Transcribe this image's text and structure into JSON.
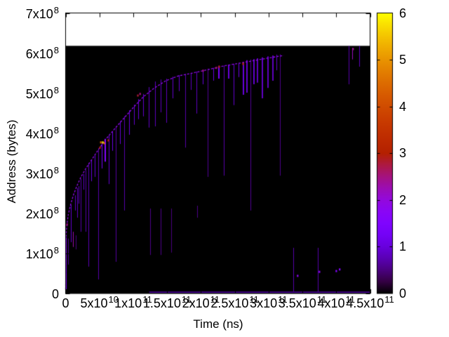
{
  "colors": {
    "background": "#ffffff",
    "plot_fill": "#000000",
    "border": "#000000",
    "text": "#000000",
    "palette_stops": {
      "0": "#000000",
      "1": "#6801dd",
      "2": "#9309dd",
      "3": "#b42000",
      "4": "#d04c00",
      "5": "#e99400",
      "6": "#ffff00"
    }
  },
  "chart_data": {
    "type": "heatmap",
    "title": "",
    "xlabel": "Time (ns)",
    "ylabel": "Address (bytes)",
    "x_range": [
      0,
      450000000000.0
    ],
    "y_range": [
      0,
      700000000.0
    ],
    "grid": false,
    "x_ticks": [
      {
        "v": 0,
        "m": "0",
        "e": ""
      },
      {
        "v": 50000000000.0,
        "m": "5x10",
        "e": "10"
      },
      {
        "v": 100000000000.0,
        "m": "1x10",
        "e": "11"
      },
      {
        "v": 150000000000.0,
        "m": "1.5x10",
        "e": "11"
      },
      {
        "v": 200000000000.0,
        "m": "2x10",
        "e": "11"
      },
      {
        "v": 250000000000.0,
        "m": "2.5x10",
        "e": "11"
      },
      {
        "v": 300000000000.0,
        "m": "3x10",
        "e": "11"
      },
      {
        "v": 350000000000.0,
        "m": "3.5x10",
        "e": "11"
      },
      {
        "v": 400000000000.0,
        "m": "4x10",
        "e": "11"
      },
      {
        "v": 450000000000.0,
        "m": "4.5x10",
        "e": "11"
      }
    ],
    "y_ticks": [
      {
        "v": 0,
        "m": "0",
        "e": ""
      },
      {
        "v": 100000000.0,
        "m": "1x10",
        "e": "8"
      },
      {
        "v": 200000000.0,
        "m": "2x10",
        "e": "8"
      },
      {
        "v": 300000000.0,
        "m": "3x10",
        "e": "8"
      },
      {
        "v": 400000000.0,
        "m": "4x10",
        "e": "8"
      },
      {
        "v": 500000000.0,
        "m": "5x10",
        "e": "8"
      },
      {
        "v": 600000000.0,
        "m": "6x10",
        "e": "8"
      },
      {
        "v": 700000000.0,
        "m": "7x10",
        "e": "8"
      }
    ],
    "colorbar": {
      "range": [
        0,
        6
      ],
      "ticks": [
        {
          "v": 0,
          "label": "0"
        },
        {
          "v": 1,
          "label": "1"
        },
        {
          "v": 2,
          "label": "2"
        },
        {
          "v": 3,
          "label": "3"
        },
        {
          "v": 4,
          "label": "4"
        },
        {
          "v": 5,
          "label": "5"
        },
        {
          "v": 6,
          "label": "6"
        }
      ],
      "palette": "gnuplot pm3d rgbformulae 7,5,15 (black-violet-purple-red-orange-yellow)",
      "position": "right"
    },
    "data_extent": {
      "t_max": 450000000000.0,
      "address_max": 618000000.0
    },
    "frontier_note": "saturating allocation frontier; bright violet broken line, value ~1.9",
    "frontier_intensity": 1.9,
    "frontier": [
      [
        0,
        10000000.0
      ],
      [
        1000000000.0,
        154000000.0
      ],
      [
        2100000000.0,
        175000000.0
      ],
      [
        4100000000.0,
        198000000.0
      ],
      [
        7300000000.0,
        221000000.0
      ],
      [
        11400000000.0,
        245000000.0
      ],
      [
        16600000000.0,
        268000000.0
      ],
      [
        22800000000.0,
        291000000.0
      ],
      [
        30000000000.0,
        312000000.0
      ],
      [
        38300000000.0,
        333000000.0
      ],
      [
        47700000000.0,
        357000000.0
      ],
      [
        58000000000.0,
        382000000.0
      ],
      [
        70500000000.0,
        407000000.0
      ],
      [
        83900000000.0,
        433000000.0
      ],
      [
        99500000000.0,
        463000000.0
      ],
      [
        115000000000.0,
        491000000.0
      ],
      [
        130500000000.0,
        512000000.0
      ],
      [
        148200000000.0,
        531000000.0
      ],
      [
        166800000000.0,
        543000000.0
      ],
      [
        187500000000.0,
        550000000.0
      ],
      [
        211400000000.0,
        559000000.0
      ],
      [
        234200000000.0,
        568000000.0
      ],
      [
        258000000000.0,
        575000000.0
      ],
      [
        280800000000.0,
        582000000.0
      ],
      [
        304600000000.0,
        589000000.0
      ],
      [
        322200000000.0,
        594000000.0
      ]
    ],
    "streaks_format": "[t_ns, addr_from_bytes, addr_to_bytes, intensity_0_to_6, width_px]",
    "streaks": [
      [
        300000000.0,
        3000000.0,
        140000000.0,
        1.2,
        1
      ],
      [
        500000000.0,
        0,
        50000000.0,
        1.5,
        1
      ],
      [
        4000000000.0,
        72000000.0,
        137000000.0,
        0.6,
        1
      ],
      [
        7300000000.0,
        128000000.0,
        221000000.0,
        0.9,
        1
      ],
      [
        10400000000.0,
        116000000.0,
        154000000.0,
        2.3,
        1
      ],
      [
        13500000000.0,
        207000000.0,
        245000000.0,
        0.8,
        1
      ],
      [
        15500000000.0,
        110000000.0,
        145000000.0,
        0.5,
        1
      ],
      [
        16600000000.0,
        189000000.0,
        263000000.0,
        0.8,
        1
      ],
      [
        19700000000.0,
        224000000.0,
        268000000.0,
        0.8,
        1
      ],
      [
        22800000000.0,
        154000000.0,
        286000000.0,
        0.7,
        1
      ],
      [
        26900000000.0,
        259000000.0,
        298000000.0,
        0.9,
        1
      ],
      [
        30000000000.0,
        154000000.0,
        308000000.0,
        0.7,
        1
      ],
      [
        34200000000.0,
        67000000.0,
        326000000.0,
        0.75,
        1
      ],
      [
        38300000000.0,
        280000000.0,
        333000000.0,
        1.0,
        1
      ],
      [
        43500000000.0,
        291000000.0,
        347000000.0,
        0.9,
        1
      ],
      [
        48700000000.0,
        35000000.0,
        361000000.0,
        0.7,
        1
      ],
      [
        53900000000.0,
        312000000.0,
        375000000.0,
        1.3,
        1
      ],
      [
        59100000000.0,
        329000000.0,
        386000000.0,
        1.6,
        2
      ],
      [
        64200000000.0,
        273000000.0,
        396000000.0,
        0.9,
        1
      ],
      [
        69400000000.0,
        356000000.0,
        405000000.0,
        1.1,
        1
      ],
      [
        74600000000.0,
        79000000.0,
        415000000.0,
        0.65,
        1
      ],
      [
        80800000000.0,
        373000000.0,
        429000000.0,
        1.0,
        1
      ],
      [
        87000000000.0,
        207000000.0,
        442000000.0,
        0.7,
        1
      ],
      [
        94300000000.0,
        396000000.0,
        457000000.0,
        1.0,
        1
      ],
      [
        101500000000.0,
        421000000.0,
        471000000.0,
        0.9,
        1
      ],
      [
        107800000000.0,
        435000000.0,
        485000000.0,
        1.0,
        1
      ],
      [
        115000000000.0,
        442000000.0,
        498000000.0,
        0.9,
        1
      ],
      [
        123300000000.0,
        414000000.0,
        515000000.0,
        0.85,
        1
      ],
      [
        125400000000.0,
        96000000.0,
        212000000.0,
        0.55,
        1
      ],
      [
        132600000000.0,
        417000000.0,
        529000000.0,
        0.8,
        1
      ],
      [
        140900000000.0,
        96000000.0,
        212000000.0,
        0.55,
        1
      ],
      [
        140900000000.0,
        452000000.0,
        534000000.0,
        0.8,
        1
      ],
      [
        149200000000.0,
        426000000.0,
        536000000.0,
        0.8,
        1
      ],
      [
        156400000000.0,
        102000000.0,
        212000000.0,
        0.5,
        1
      ],
      [
        158500000000.0,
        487000000.0,
        541000000.0,
        0.9,
        1
      ],
      [
        167800000000.0,
        505000000.0,
        545000000.0,
        0.9,
        1
      ],
      [
        177200000000.0,
        364000000.0,
        548000000.0,
        0.7,
        1
      ],
      [
        185500000000.0,
        508000000.0,
        550000000.0,
        0.8,
        1
      ],
      [
        194800000000.0,
        189000000.0,
        219000000.0,
        0.55,
        1
      ],
      [
        193700000000.0,
        449000000.0,
        554000000.0,
        0.8,
        1
      ],
      [
        203100000000.0,
        522000000.0,
        557000000.0,
        1.0,
        1
      ],
      [
        210300000000.0,
        291000000.0,
        561000000.0,
        0.6,
        1
      ],
      [
        218600000000.0,
        531000000.0,
        563000000.0,
        1.0,
        1
      ],
      [
        226900000000.0,
        536000000.0,
        568000000.0,
        1.3,
        2
      ],
      [
        234200000000.0,
        294000000.0,
        569000000.0,
        0.7,
        1
      ],
      [
        241400000000.0,
        536000000.0,
        571000000.0,
        1.0,
        2
      ],
      [
        248700000000.0,
        470000000.0,
        573000000.0,
        0.9,
        1
      ],
      [
        255900000000.0,
        540000000.0,
        575000000.0,
        1.1,
        1
      ],
      [
        263200000000.0,
        496000000.0,
        578000000.0,
        1.0,
        2
      ],
      [
        268400000000.0,
        501000000.0,
        582000000.0,
        0.9,
        2
      ],
      [
        273500000000.0,
        207000000.0,
        584000000.0,
        0.6,
        1
      ],
      [
        278700000000.0,
        522000000.0,
        585000000.0,
        0.9,
        2
      ],
      [
        283900000000.0,
        526000000.0,
        587000000.0,
        0.8,
        2
      ],
      [
        291200000000.0,
        487000000.0,
        589000000.0,
        0.85,
        2
      ],
      [
        299400000000.0,
        513000000.0,
        592000000.0,
        0.8,
        2
      ],
      [
        306700000000.0,
        531000000.0,
        594000000.0,
        0.8,
        2
      ],
      [
        311900000000.0,
        557000000.0,
        596000000.0,
        0.9,
        1
      ],
      [
        317000000000.0,
        294000000.0,
        597000000.0,
        0.55,
        1
      ],
      [
        336700000000.0,
        5000000.0,
        114000000.0,
        0.7,
        1
      ],
      [
        373000000000.0,
        5000000.0,
        114000000.0,
        0.7,
        1
      ],
      [
        418600000000.0,
        522000000.0,
        618000000.0,
        0.7,
        1
      ],
      [
        423800000000.0,
        584000000.0,
        613000000.0,
        2.2,
        1
      ],
      [
        434100000000.0,
        566000000.0,
        618000000.0,
        0.8,
        1
      ]
    ],
    "spots_format": "[t_ns, addr_bytes, intensity_0_to_6]",
    "spots": [
      [
        2100000000.0,
        172000000.0,
        2.5
      ],
      [
        50800000000.0,
        364000000.0,
        3.0
      ],
      [
        52000000000.0,
        377000000.0,
        4.5
      ],
      [
        54900000000.0,
        377000000.0,
        6.0
      ],
      [
        57000000000.0,
        375000000.0,
        4.5
      ],
      [
        63000000000.0,
        382000000.0,
        3.0
      ],
      [
        106700000000.0,
        494000000.0,
        2.8
      ],
      [
        110000000000.0,
        498000000.0,
        2.5
      ],
      [
        203100000000.0,
        556000000.0,
        2.5
      ],
      [
        222700000000.0,
        563000000.0,
        2.6
      ],
      [
        226900000000.0,
        566000000.0,
        3.0
      ],
      [
        262200000000.0,
        573000000.0,
        3.2
      ],
      [
        342900000000.0,
        44000000.0,
        1.8
      ],
      [
        375100000000.0,
        54000000.0,
        1.8
      ],
      [
        400000000000.0,
        56000000.0,
        1.6
      ],
      [
        405000000000.0,
        60000000.0,
        1.6
      ],
      [
        424800000000.0,
        610000000.0,
        2.4
      ]
    ],
    "bottom_band": {
      "t_start": 123500000000.0,
      "t_end": 450000000000.0,
      "address": 4000000.0,
      "value": 0.9
    }
  }
}
